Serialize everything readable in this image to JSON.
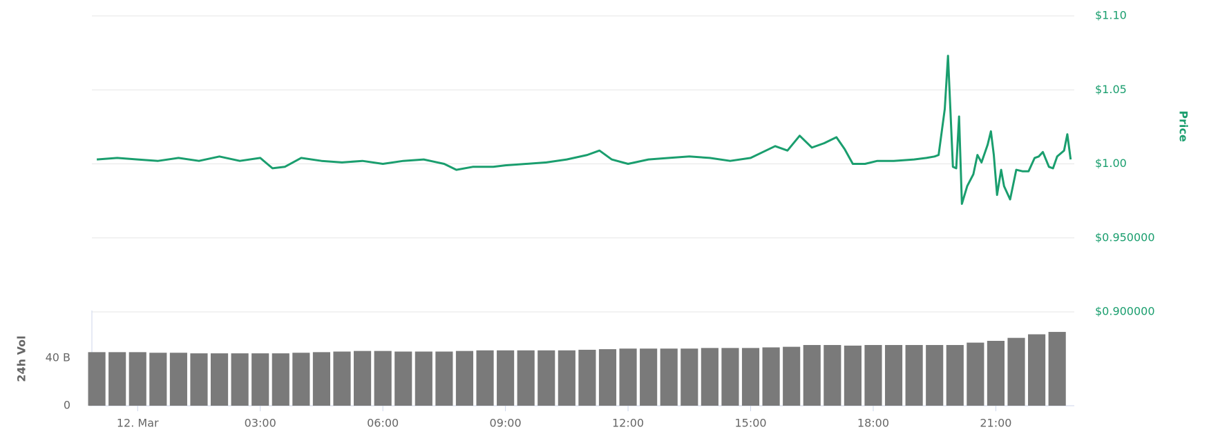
{
  "chart_data": [
    {
      "type": "line",
      "y_label": "Price",
      "grid": true,
      "xlim": [
        -1.12,
        22.92
      ],
      "ylim": [
        0.9,
        1.1
      ],
      "yticks": [
        {
          "value": 0.9,
          "label": "$0.900000"
        },
        {
          "value": 0.95,
          "label": "$0.950000"
        },
        {
          "value": 1.0,
          "label": "$1.00"
        },
        {
          "value": 1.05,
          "label": "$1.05"
        },
        {
          "value": 1.1,
          "label": "$1.10"
        }
      ],
      "series": [
        {
          "color": "#1a9e6e",
          "x": [
            -1,
            -0.5,
            0,
            0.5,
            1,
            1.5,
            2,
            2.5,
            3,
            3.3,
            3.6,
            4,
            4.5,
            5,
            5.5,
            6,
            6.5,
            7,
            7.5,
            7.8,
            8.2,
            8.7,
            9,
            9.5,
            10,
            10.5,
            11,
            11.3,
            11.6,
            12,
            12.5,
            13,
            13.5,
            14,
            14.5,
            15,
            15.3,
            15.6,
            15.9,
            16.2,
            16.5,
            16.8,
            17.1,
            17.3,
            17.5,
            17.8,
            18.1,
            18.5,
            19,
            19.3,
            19.5,
            19.6,
            19.75,
            19.83,
            19.95,
            20.03,
            20.1,
            20.17,
            20.3,
            20.45,
            20.55,
            20.65,
            20.8,
            20.88,
            20.95,
            21.03,
            21.13,
            21.2,
            21.35,
            21.5,
            21.65,
            21.8,
            21.95,
            22.05,
            22.15,
            22.3,
            22.4,
            22.5,
            22.67,
            22.75,
            22.83
          ],
          "values": [
            1.003,
            1.004,
            1.003,
            1.002,
            1.004,
            1.002,
            1.005,
            1.002,
            1.004,
            0.997,
            0.998,
            1.004,
            1.002,
            1.001,
            1.002,
            1.0,
            1.002,
            1.003,
            1.0,
            0.996,
            0.998,
            0.998,
            0.999,
            1.0,
            1.001,
            1.003,
            1.006,
            1.009,
            1.003,
            1.0,
            1.003,
            1.004,
            1.005,
            1.004,
            1.002,
            1.004,
            1.008,
            1.012,
            1.009,
            1.019,
            1.011,
            1.014,
            1.018,
            1.01,
            1.0,
            1.0,
            1.002,
            1.002,
            1.003,
            1.004,
            1.005,
            1.006,
            1.037,
            1.073,
            0.998,
            0.997,
            1.032,
            0.973,
            0.985,
            0.993,
            1.006,
            1.001,
            1.013,
            1.022,
            1.006,
            0.979,
            0.996,
            0.985,
            0.976,
            0.996,
            0.995,
            0.995,
            1.004,
            1.005,
            1.008,
            0.998,
            0.997,
            1.005,
            1.009,
            1.02,
            1.003
          ]
        }
      ]
    },
    {
      "type": "bar",
      "y_label": "24h Vol",
      "xlim": [
        -1.12,
        22.92
      ],
      "ylim": [
        0,
        80
      ],
      "xticks": [
        {
          "value": 0,
          "label": "12. Mar"
        },
        {
          "value": 3,
          "label": "03:00"
        },
        {
          "value": 6,
          "label": "06:00"
        },
        {
          "value": 9,
          "label": "09:00"
        },
        {
          "value": 12,
          "label": "12:00"
        },
        {
          "value": 15,
          "label": "15:00"
        },
        {
          "value": 18,
          "label": "18:00"
        },
        {
          "value": 21,
          "label": "21:00"
        }
      ],
      "yticks": [
        0,
        {
          "value": 40,
          "label": "40 B"
        }
      ],
      "series": [
        {
          "color": "#7a7a7a",
          "x": [
            -1,
            -0.5,
            0,
            0.5,
            1,
            1.5,
            2,
            2.5,
            3,
            3.5,
            4,
            4.5,
            5,
            5.5,
            6,
            6.5,
            7,
            7.5,
            8,
            8.5,
            9,
            9.5,
            10,
            10.5,
            11,
            11.5,
            12,
            12.5,
            13,
            13.5,
            14,
            14.5,
            15,
            15.5,
            16,
            16.5,
            17,
            17.5,
            18,
            18.5,
            19,
            19.5,
            20,
            20.5,
            21,
            21.5,
            22,
            22.5
          ],
          "values": [
            45,
            45,
            45,
            44.5,
            44.5,
            44,
            44,
            44,
            44,
            44,
            44.5,
            45,
            45.5,
            46,
            46,
            45.5,
            45.5,
            45.5,
            46,
            46.5,
            46.5,
            46.5,
            46.5,
            46.5,
            47,
            47.5,
            48,
            48,
            48,
            48,
            48.5,
            48.5,
            48.5,
            49,
            49.5,
            51,
            51,
            50.5,
            51,
            51,
            51,
            51,
            51,
            53,
            54.5,
            57,
            60,
            62
          ]
        }
      ]
    }
  ]
}
